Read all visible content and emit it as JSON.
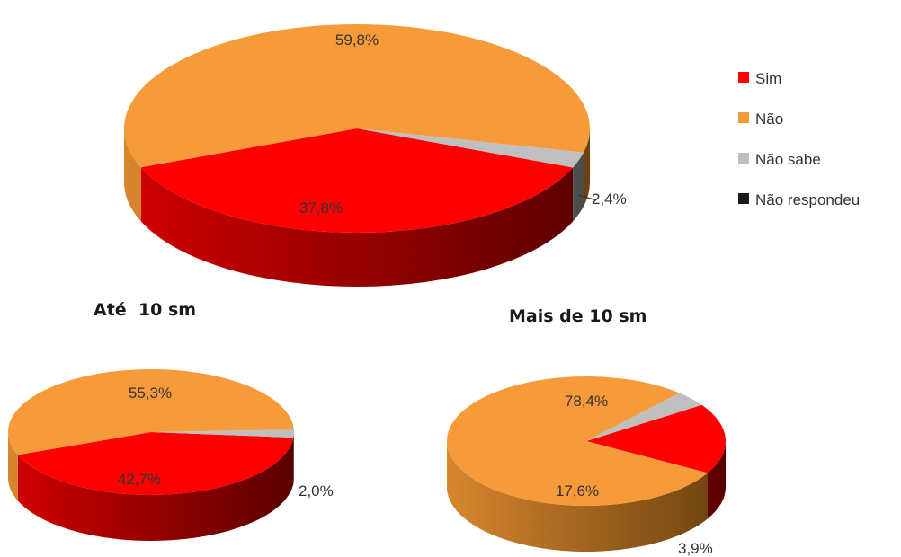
{
  "chart_data": [
    {
      "type": "pie",
      "title": "",
      "series": [
        {
          "label": "Sim",
          "value": 37.8,
          "display": "37,8%"
        },
        {
          "label": "Não",
          "value": 59.8,
          "display": "59,8%"
        },
        {
          "label": "Não sabe",
          "value": 2.4,
          "display": "2,4%"
        },
        {
          "label": "Não respondeu",
          "value": 0.0,
          "display": ""
        }
      ]
    },
    {
      "type": "pie",
      "title": "Até  10 sm",
      "series": [
        {
          "label": "Sim",
          "value": 42.7,
          "display": "42,7%"
        },
        {
          "label": "Não",
          "value": 55.3,
          "display": "55,3%"
        },
        {
          "label": "Não sabe",
          "value": 2.0,
          "display": "2,0%"
        },
        {
          "label": "Não respondeu",
          "value": 0.0,
          "display": ""
        }
      ]
    },
    {
      "type": "pie",
      "title": "Mais de 10 sm",
      "series": [
        {
          "label": "Sim",
          "value": 17.6,
          "display": "17,6%"
        },
        {
          "label": "Não",
          "value": 78.4,
          "display": "78,4%"
        },
        {
          "label": "Não sabe",
          "value": 3.9,
          "display": "3,9%"
        },
        {
          "label": "Não respondeu",
          "value": 0.0,
          "display": ""
        }
      ]
    }
  ],
  "legend": {
    "placement": "right",
    "items": [
      {
        "label": "Sim",
        "color": "#ff0000"
      },
      {
        "label": "Não",
        "color": "#f79a3a"
      },
      {
        "label": "Não sabe",
        "color": "#bfbfbf"
      },
      {
        "label": "Não respondeu",
        "color": "#1a1a1a"
      }
    ]
  }
}
